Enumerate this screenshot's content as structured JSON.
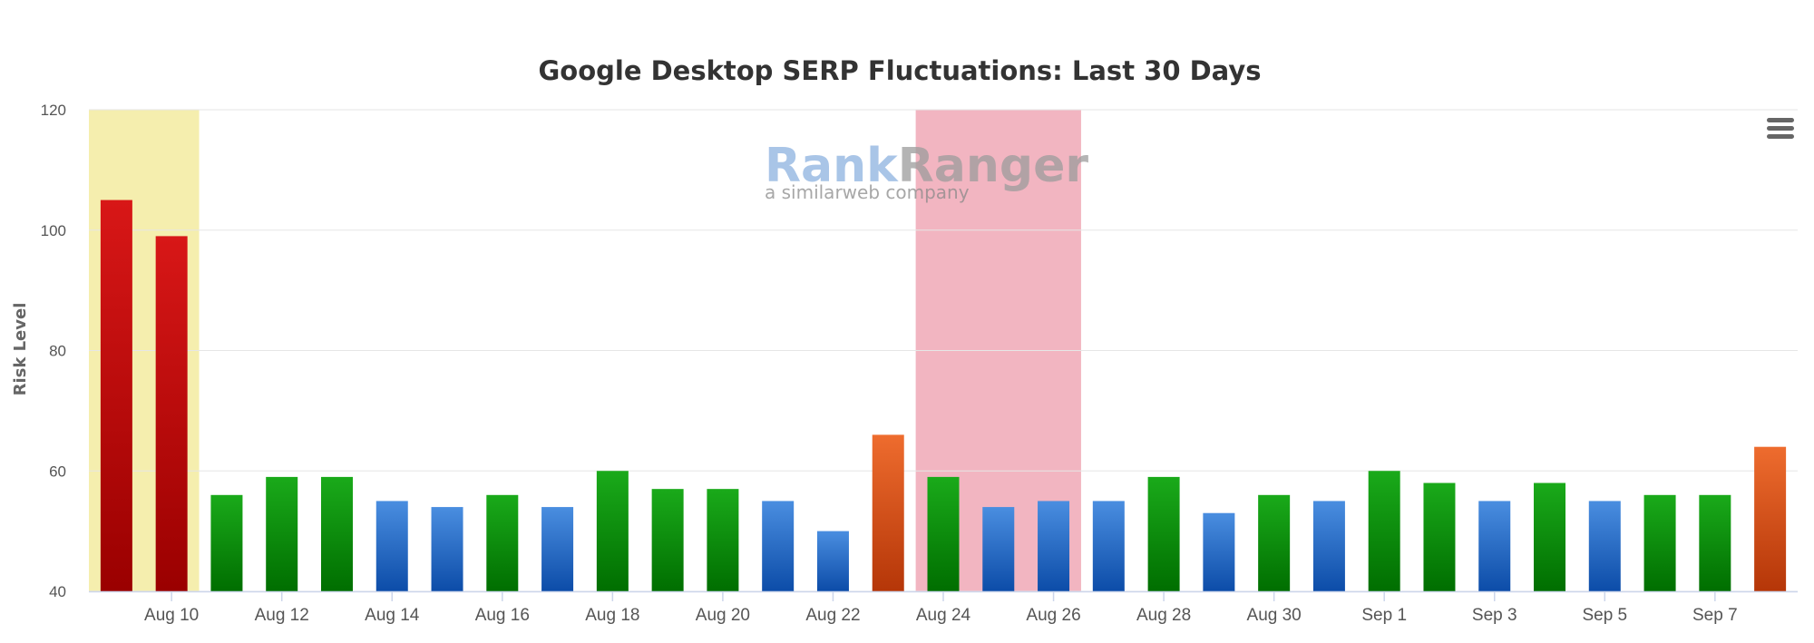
{
  "chart_data": {
    "type": "bar",
    "title": "Google Desktop SERP Fluctuations: Last 30 Days",
    "ylabel": "Risk Level",
    "xlabel": "",
    "ylim": [
      40,
      120
    ],
    "yticks": [
      40,
      60,
      80,
      100,
      120
    ],
    "grid": true,
    "legend": "none",
    "x_tick_labels": [
      "Aug 10",
      "Aug 12",
      "Aug 14",
      "Aug 16",
      "Aug 18",
      "Aug 20",
      "Aug 22",
      "Aug 24",
      "Aug 26",
      "Aug 28",
      "Aug 30",
      "Sep 1",
      "Sep 3",
      "Sep 5",
      "Sep 7"
    ],
    "x_tick_positions": [
      1.5,
      3.5,
      5.5,
      7.5,
      9.5,
      11.5,
      13.5,
      15.5,
      17.5,
      19.5,
      21.5,
      23.5,
      25.5,
      27.5,
      29.5
    ],
    "values": [
      105,
      99,
      56,
      59,
      59,
      55,
      54,
      56,
      54,
      60,
      57,
      57,
      55,
      50,
      66,
      59,
      54,
      55,
      55,
      59,
      53,
      56,
      55,
      60,
      58,
      55,
      58,
      55,
      56,
      56,
      64
    ],
    "bar_levels": [
      "red",
      "red",
      "green",
      "green",
      "green",
      "blue",
      "blue",
      "green",
      "blue",
      "green",
      "green",
      "green",
      "blue",
      "blue",
      "orange",
      "green",
      "blue",
      "blue",
      "blue",
      "green",
      "blue",
      "green",
      "blue",
      "green",
      "green",
      "blue",
      "green",
      "blue",
      "green",
      "green",
      "orange"
    ],
    "level_colors": {
      "red": [
        "#d81717",
        "#9a0000"
      ],
      "orange": [
        "#ee6c2e",
        "#b53608"
      ],
      "green": [
        "#1aaa1a",
        "#006e00"
      ],
      "blue": [
        "#4a8ee0",
        "#0c4ca8"
      ]
    },
    "highlight_bands": [
      {
        "from": 0,
        "to": 1,
        "color": "#f5eeae"
      },
      {
        "from": 15,
        "to": 17,
        "color": "#f2b5c1"
      }
    ]
  },
  "watermark": {
    "rank": "Rank",
    "ranger": "Ranger",
    "sub": "a similarweb company",
    "rank_color": "#8db2e0",
    "ranger_color": "#9c9c9c"
  },
  "menu_icon": "hamburger-menu-icon"
}
